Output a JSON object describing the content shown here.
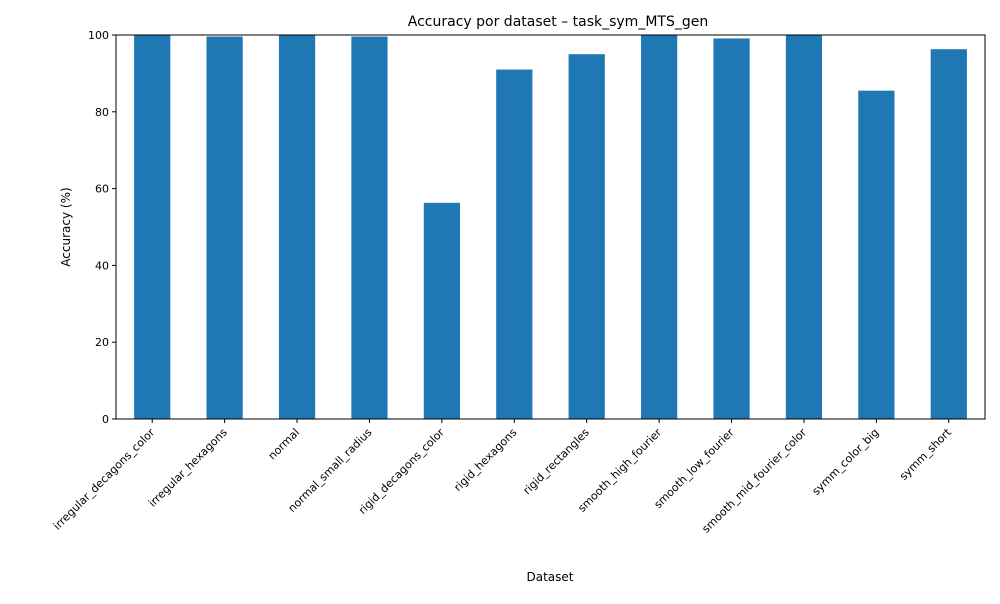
{
  "chart_data": {
    "type": "bar",
    "title": "Accuracy por dataset – task_sym_MTS_gen",
    "xlabel": "Dataset",
    "ylabel": "Accuracy (%)",
    "ylim": [
      0,
      100
    ],
    "yticks": [
      0,
      20,
      40,
      60,
      80,
      100
    ],
    "grid": false,
    "legend": "none",
    "bar_color": "#1f77b4",
    "categories": [
      "irregular_decagons_color",
      "irregular_hexagons",
      "normal",
      "normal_small_radius",
      "rigid_decagons_color",
      "rigid_hexagons",
      "rigid_rectangles",
      "smooth_high_fourier",
      "smooth_low_fourier",
      "smooth_mid_fourier_color",
      "symm_color_big",
      "symm_short"
    ],
    "values": [
      100,
      99.6,
      100,
      99.6,
      56.3,
      91.0,
      95.0,
      100,
      99.1,
      100,
      85.5,
      96.3
    ]
  }
}
